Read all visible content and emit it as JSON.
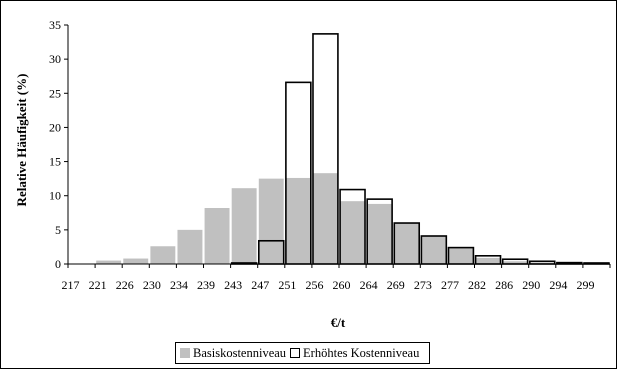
{
  "chart_data": {
    "type": "bar",
    "xlabel": "€/t",
    "ylabel": "Relative Häufigkeit (%)",
    "ylim": [
      0,
      35
    ],
    "yticks": [
      0,
      5,
      10,
      15,
      20,
      25,
      30,
      35
    ],
    "categories": [
      "217",
      "221",
      "226",
      "230",
      "234",
      "239",
      "243",
      "247",
      "251",
      "256",
      "260",
      "264",
      "269",
      "273",
      "277",
      "282",
      "286",
      "290",
      "294",
      "299"
    ],
    "series": [
      {
        "name": "Basiskostenniveau",
        "style": "filled",
        "color": "#c0c0c0",
        "values": [
          0,
          0.5,
          0.8,
          2.6,
          5.0,
          8.2,
          11.1,
          12.5,
          12.6,
          13.3,
          9.2,
          8.8,
          6.0,
          4.1,
          2.3,
          0.9,
          0.4,
          0.2,
          0.1,
          0.1
        ]
      },
      {
        "name": "Erhöhtes Kostenniveau",
        "style": "outline",
        "color": "#000000",
        "values": [
          0,
          0,
          0,
          0,
          0,
          0,
          0.15,
          3.4,
          26.6,
          33.7,
          10.9,
          9.5,
          6.0,
          4.1,
          2.4,
          1.2,
          0.7,
          0.4,
          0.2,
          0.15
        ]
      }
    ],
    "grid": false,
    "legend_position": "bottom"
  }
}
